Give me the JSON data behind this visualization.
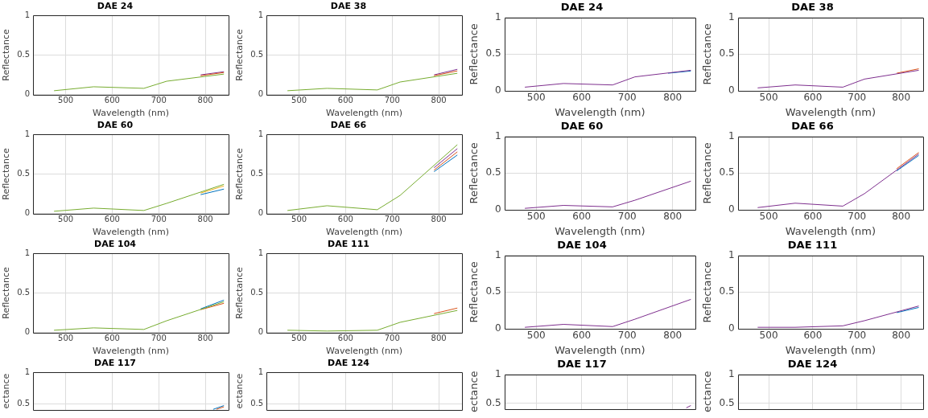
{
  "chart_data": [
    {
      "type": "line",
      "title": "DAE 24",
      "xlabel": "Wavelength (nm)",
      "ylabel": "Reflectance",
      "x": [
        475,
        560,
        668,
        717,
        840
      ],
      "xlim": [
        430,
        850
      ],
      "ylim": [
        0,
        1
      ],
      "xticks": [
        500,
        600,
        700,
        800
      ],
      "yticks": [
        0,
        0.5,
        1
      ],
      "grid": true,
      "series": [
        {
          "color": "#77ac30",
          "values": [
            0.05,
            0.1,
            0.08,
            0.17,
            0.26
          ]
        },
        {
          "color": "#d95319",
          "x": [
            790,
            840
          ],
          "values": [
            0.24,
            0.28
          ]
        },
        {
          "color": "#7e2f8e",
          "x": [
            790,
            840
          ],
          "values": [
            0.25,
            0.29
          ]
        }
      ]
    },
    {
      "type": "line",
      "title": "DAE 38",
      "xlabel": "Wavelength (nm)",
      "ylabel": "Reflectance",
      "x": [
        475,
        560,
        668,
        717,
        840
      ],
      "xlim": [
        430,
        850
      ],
      "ylim": [
        0,
        1
      ],
      "xticks": [
        500,
        600,
        700,
        800
      ],
      "yticks": [
        0,
        0.5,
        1
      ],
      "grid": true,
      "series": [
        {
          "color": "#77ac30",
          "values": [
            0.05,
            0.08,
            0.06,
            0.16,
            0.27
          ]
        },
        {
          "color": "#d95319",
          "x": [
            790,
            840
          ],
          "values": [
            0.24,
            0.3
          ]
        },
        {
          "color": "#7e2f8e",
          "x": [
            790,
            840
          ],
          "values": [
            0.25,
            0.32
          ]
        }
      ]
    },
    {
      "type": "line",
      "title": "DAE 24",
      "xlabel": "Wavelength (nm)",
      "ylabel": "Reflectance",
      "x": [
        475,
        560,
        668,
        717,
        840
      ],
      "xlim": [
        430,
        850
      ],
      "ylim": [
        0,
        1
      ],
      "xticks": [
        500,
        600,
        700,
        800
      ],
      "yticks": [
        0,
        0.5,
        1
      ],
      "grid": true,
      "series": [
        {
          "color": "#7e2f8e",
          "values": [
            0.05,
            0.1,
            0.08,
            0.19,
            0.28
          ]
        },
        {
          "color": "#0072bd",
          "x": [
            790,
            840
          ],
          "values": [
            0.24,
            0.27
          ]
        }
      ]
    },
    {
      "type": "line",
      "title": "DAE 38",
      "xlabel": "Wavelength (nm)",
      "ylabel": "Reflectance",
      "x": [
        475,
        560,
        668,
        717,
        840
      ],
      "xlim": [
        430,
        850
      ],
      "ylim": [
        0,
        1
      ],
      "xticks": [
        500,
        600,
        700,
        800
      ],
      "yticks": [
        0,
        0.5,
        1
      ],
      "grid": true,
      "series": [
        {
          "color": "#7e2f8e",
          "values": [
            0.04,
            0.08,
            0.05,
            0.16,
            0.28
          ]
        },
        {
          "color": "#d95319",
          "x": [
            790,
            840
          ],
          "values": [
            0.24,
            0.3
          ]
        }
      ]
    },
    {
      "type": "line",
      "title": "DAE 60",
      "xlabel": "Wavelength (nm)",
      "ylabel": "Reflectance",
      "x": [
        475,
        560,
        668,
        717,
        840
      ],
      "xlim": [
        430,
        850
      ],
      "ylim": [
        0,
        1
      ],
      "xticks": [
        500,
        600,
        700,
        800
      ],
      "yticks": [
        0,
        0.5,
        1
      ],
      "grid": true,
      "series": [
        {
          "color": "#77ac30",
          "values": [
            0.03,
            0.07,
            0.04,
            0.13,
            0.37
          ]
        },
        {
          "color": "#0072bd",
          "x": [
            790,
            840
          ],
          "values": [
            0.24,
            0.31
          ]
        },
        {
          "color": "#edb120",
          "x": [
            790,
            840
          ],
          "values": [
            0.26,
            0.35
          ]
        }
      ]
    },
    {
      "type": "line",
      "title": "DAE 66",
      "xlabel": "Wavelength (nm)",
      "ylabel": "Reflectance",
      "x": [
        475,
        560,
        668,
        717,
        840
      ],
      "xlim": [
        430,
        850
      ],
      "ylim": [
        0,
        1
      ],
      "xticks": [
        500,
        600,
        700,
        800
      ],
      "yticks": [
        0,
        0.5,
        1
      ],
      "grid": true,
      "series": [
        {
          "color": "#77ac30",
          "values": [
            0.04,
            0.1,
            0.05,
            0.23,
            0.87
          ]
        },
        {
          "color": "#0072bd",
          "x": [
            790,
            840
          ],
          "values": [
            0.53,
            0.74
          ]
        },
        {
          "color": "#d95319",
          "x": [
            790,
            840
          ],
          "values": [
            0.55,
            0.78
          ]
        },
        {
          "color": "#7e2f8e",
          "x": [
            790,
            840
          ],
          "values": [
            0.58,
            0.82
          ]
        }
      ]
    },
    {
      "type": "line",
      "title": "DAE 60",
      "xlabel": "Wavelength (nm)",
      "ylabel": "Reflectance",
      "x": [
        475,
        560,
        668,
        717,
        840
      ],
      "xlim": [
        430,
        850
      ],
      "ylim": [
        0,
        1
      ],
      "xticks": [
        500,
        600,
        700,
        800
      ],
      "yticks": [
        0,
        0.5,
        1
      ],
      "grid": true,
      "series": [
        {
          "color": "#7e2f8e",
          "values": [
            0.02,
            0.06,
            0.04,
            0.13,
            0.39
          ]
        }
      ]
    },
    {
      "type": "line",
      "title": "DAE 66",
      "xlabel": "Wavelength (nm)",
      "ylabel": "Reflectance",
      "x": [
        475,
        560,
        668,
        717,
        840
      ],
      "xlim": [
        430,
        850
      ],
      "ylim": [
        0,
        1
      ],
      "xticks": [
        500,
        600,
        700,
        800
      ],
      "yticks": [
        0,
        0.5,
        1
      ],
      "grid": true,
      "series": [
        {
          "color": "#7e2f8e",
          "values": [
            0.03,
            0.09,
            0.05,
            0.22,
            0.76
          ]
        },
        {
          "color": "#0072bd",
          "x": [
            790,
            840
          ],
          "values": [
            0.53,
            0.74
          ]
        },
        {
          "color": "#d95319",
          "x": [
            790,
            840
          ],
          "values": [
            0.56,
            0.78
          ]
        }
      ]
    },
    {
      "type": "line",
      "title": "DAE 104",
      "xlabel": "Wavelength (nm)",
      "ylabel": "Reflectance",
      "x": [
        475,
        560,
        668,
        717,
        840
      ],
      "xlim": [
        430,
        850
      ],
      "ylim": [
        0,
        1
      ],
      "xticks": [
        500,
        600,
        700,
        800
      ],
      "yticks": [
        0,
        0.5,
        1
      ],
      "grid": true,
      "series": [
        {
          "color": "#77ac30",
          "values": [
            0.03,
            0.06,
            0.04,
            0.15,
            0.39
          ]
        },
        {
          "color": "#0072bd",
          "x": [
            790,
            840
          ],
          "values": [
            0.3,
            0.41
          ]
        },
        {
          "color": "#d95319",
          "x": [
            790,
            840
          ],
          "values": [
            0.29,
            0.37
          ]
        }
      ]
    },
    {
      "type": "line",
      "title": "DAE 111",
      "xlabel": "Wavelength (nm)",
      "ylabel": "Reflectance",
      "x": [
        475,
        560,
        668,
        717,
        840
      ],
      "xlim": [
        430,
        850
      ],
      "ylim": [
        0,
        1
      ],
      "xticks": [
        500,
        600,
        700,
        800
      ],
      "yticks": [
        0,
        0.5,
        1
      ],
      "grid": true,
      "series": [
        {
          "color": "#77ac30",
          "values": [
            0.03,
            0.02,
            0.03,
            0.13,
            0.28
          ]
        },
        {
          "color": "#d95319",
          "x": [
            790,
            840
          ],
          "values": [
            0.24,
            0.31
          ]
        }
      ]
    },
    {
      "type": "line",
      "title": "DAE 104",
      "xlabel": "Wavelength (nm)",
      "ylabel": "Reflectance",
      "x": [
        475,
        560,
        668,
        717,
        840
      ],
      "xlim": [
        430,
        850
      ],
      "ylim": [
        0,
        1
      ],
      "xticks": [
        500,
        600,
        700,
        800
      ],
      "yticks": [
        0,
        0.5,
        1
      ],
      "grid": true,
      "series": [
        {
          "color": "#7e2f8e",
          "values": [
            0.02,
            0.06,
            0.03,
            0.13,
            0.4
          ]
        }
      ]
    },
    {
      "type": "line",
      "title": "DAE 111",
      "xlabel": "Wavelength (nm)",
      "ylabel": "Reflectance",
      "x": [
        475,
        560,
        668,
        717,
        840
      ],
      "xlim": [
        430,
        850
      ],
      "ylim": [
        0,
        1
      ],
      "xticks": [
        500,
        600,
        700,
        800
      ],
      "yticks": [
        0,
        0.5,
        1
      ],
      "grid": true,
      "series": [
        {
          "color": "#7e2f8e",
          "values": [
            0.02,
            0.02,
            0.04,
            0.11,
            0.31
          ]
        },
        {
          "color": "#0072bd",
          "x": [
            790,
            840
          ],
          "values": [
            0.22,
            0.29
          ]
        }
      ]
    },
    {
      "type": "line",
      "title": "DAE 117",
      "ylabel": "ectance",
      "xlim": [
        430,
        850
      ],
      "ylim": [
        0.4,
        1
      ],
      "xticks": [
        500,
        600,
        700,
        800
      ],
      "yticks": [
        0.5,
        1
      ],
      "grid": true,
      "tick_labels": "y",
      "series": [
        {
          "color": "#0072bd",
          "x": [
            817,
            840
          ],
          "values": [
            0.41,
            0.47
          ]
        },
        {
          "color": "#d95319",
          "x": [
            824,
            840
          ],
          "values": [
            0.41,
            0.45
          ]
        }
      ]
    },
    {
      "type": "line",
      "title": "DAE 124",
      "ylabel": "ectance",
      "xlim": [
        430,
        850
      ],
      "ylim": [
        0.4,
        1
      ],
      "xticks": [
        500,
        600,
        700,
        800
      ],
      "yticks": [
        0.5,
        1
      ],
      "grid": true,
      "tick_labels": "y"
    },
    {
      "type": "line",
      "title": "DAE 117",
      "ylabel": "ectance",
      "xlim": [
        430,
        850
      ],
      "ylim": [
        0.4,
        1
      ],
      "xticks": [
        500,
        600,
        700,
        800
      ],
      "yticks": [
        0.5,
        1
      ],
      "grid": true,
      "tick_labels": "y",
      "series": [
        {
          "color": "#7e2f8e",
          "x": [
            830,
            840
          ],
          "values": [
            0.42,
            0.46
          ]
        }
      ]
    },
    {
      "type": "line",
      "title": "DAE 124",
      "ylabel": "ectance",
      "xlim": [
        430,
        850
      ],
      "ylim": [
        0.4,
        1
      ],
      "xticks": [
        500,
        600,
        700,
        800
      ],
      "yticks": [
        0.5,
        1
      ],
      "grid": true,
      "tick_labels": "y"
    }
  ]
}
